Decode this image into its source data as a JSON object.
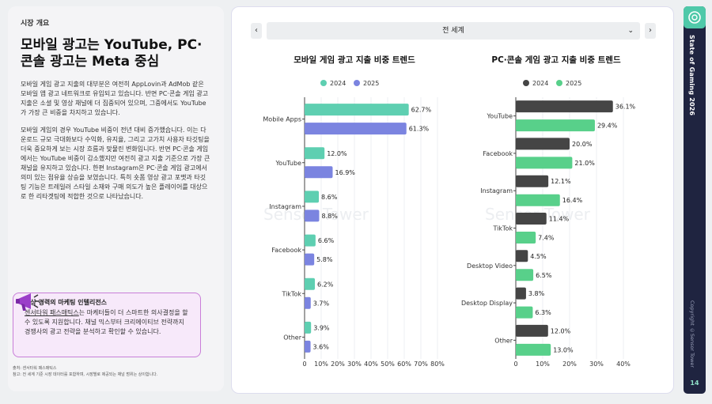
{
  "left": {
    "section_tag": "시장 개요",
    "headline": "모바일 광고는 YouTube, PC·콘솔 광고는 Meta 중심",
    "para1": "모바일 게임 광고 지출의 대부분은 여전히 AppLovin과 AdMob 같은 모바일 앱 광고 네트워크로 유입되고 있습니다. 반면 PC·콘솔 게임 광고 지출은 소셜 및 영상 채널에 더 집중되어 있으며, 그중에서도 YouTube가 가장 큰 비중을 차지하고 있습니다.",
    "para2": "모바일 게임의 경우 YouTube 비중이 전년 대비 증가했습니다. 이는 다운로드 규모 극대화보다 수익화, 유지율, 그리고 고가치 사용자 타깃팅을 더욱 중요하게 보는 시장 흐름과 맞물린 변화입니다. 반면 PC·콘솔 게임에서는 YouTube 비중이 감소했지만 여전히 광고 지출 기준으로 가장 큰 채널을 유지하고 있습니다. 한편 Instagram은 PC·콘솔 게임 광고에서 의미 있는 점유율 상승을 보였습니다. 특히 숏폼 영상 광고 포맷과 타깃팅 기능은 트레일러 스타일 소재와 구매 의도가 높은 플레이어를 대상으로 한 리타겟팅에 적합한 것으로 나타났습니다.",
    "promo_title": "수상 경력의 마케팅 인텔리전스",
    "promo_link": "센서타워 패스매틱스",
    "promo_text": "는 마케터들이 더 스마트한 의사결정을 할 수 있도록 지원합니다. 채널 믹스부터 크리에이티브 전략까지 경쟁사의 광고 전략을 분석하고 확인할 수 있습니다.",
    "footnote_line1": "출처: 센서타워 패스매틱스",
    "footnote_line2": "참고: 전 세계 기준 시장 데이터를 포함하며, 시장별로 제공되는 채널 범위는 상이합니다."
  },
  "controls": {
    "prev": "‹",
    "next": "›",
    "region_selected": "전 세계",
    "chevron": "⌄"
  },
  "watermark": "Sensor Tower",
  "rail": {
    "title": "State of Gaming 2026",
    "copyright": "Copyright ©Sensor Tower",
    "page": "14"
  },
  "colors": {
    "mobile_2024": "#5ecfb1",
    "mobile_2025": "#7b84e0",
    "pc_2024": "#454545",
    "pc_2025": "#58d08a"
  },
  "chart_data": [
    {
      "type": "bar",
      "orientation": "horizontal",
      "title": "모바일 게임 광고 지출 비중 트렌드",
      "categories": [
        "Mobile Apps",
        "YouTube",
        "Instagram",
        "Facebook",
        "TikTok",
        "Other"
      ],
      "series": [
        {
          "name": "2024",
          "values": [
            62.7,
            12.0,
            8.6,
            6.6,
            6.2,
            3.9
          ]
        },
        {
          "name": "2025",
          "values": [
            61.3,
            16.9,
            8.8,
            5.8,
            3.7,
            3.6
          ]
        }
      ],
      "xticks": [
        "0",
        "10%",
        "20%",
        "30%",
        "40%",
        "50%",
        "60%",
        "70%",
        "80%"
      ],
      "xlim": [
        0,
        80
      ],
      "legend": "top"
    },
    {
      "type": "bar",
      "orientation": "horizontal",
      "title": "PC·콘솔 게임 광고 지출 비중 트렌드",
      "categories": [
        "YouTube",
        "Facebook",
        "Instagram",
        "TikTok",
        "Desktop Video",
        "Desktop Display",
        "Other"
      ],
      "series": [
        {
          "name": "2024",
          "values": [
            36.1,
            20.0,
            12.1,
            11.4,
            4.5,
            3.8,
            12.0
          ]
        },
        {
          "name": "2025",
          "values": [
            29.4,
            21.0,
            16.4,
            7.4,
            6.5,
            6.3,
            13.0
          ]
        }
      ],
      "xticks": [
        "0",
        "10%",
        "20%",
        "30%",
        "40%"
      ],
      "xlim": [
        0,
        40
      ],
      "legend": "top"
    }
  ]
}
